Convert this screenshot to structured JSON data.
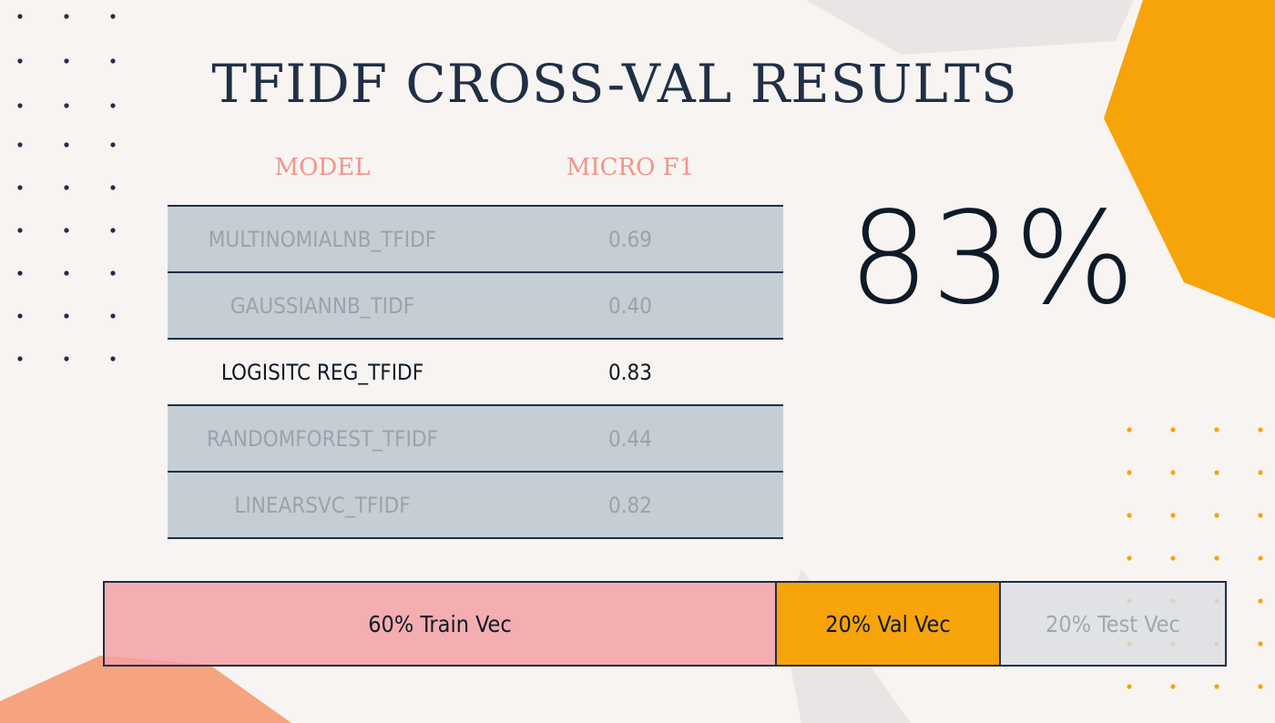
{
  "title": "TFIDF CROSS-VAL RESULTS",
  "table": {
    "headers": {
      "model": "MODEL",
      "metric": "MICRO F1"
    },
    "rows": [
      {
        "model": "MULTINOMIALNB_TFIDF",
        "f1": "0.69",
        "highlighted": false
      },
      {
        "model": "GAUSSIANNB_TIDF",
        "f1": "0.40",
        "highlighted": false
      },
      {
        "model": "LOGISITC REG_TFIDF",
        "f1": "0.83",
        "highlighted": true
      },
      {
        "model": "RANDOMFOREST_TFIDF",
        "f1": "0.44",
        "highlighted": false
      },
      {
        "model": "LINEARSVC_TFIDF",
        "f1": "0.82",
        "highlighted": false
      }
    ]
  },
  "big_score": "83%",
  "split_bar": {
    "train": {
      "label": "60% Train Vec",
      "fraction": 0.6
    },
    "val": {
      "label": "20% Val Vec",
      "fraction": 0.2
    },
    "test": {
      "label": "20% Test Vec",
      "fraction": 0.2
    }
  },
  "colors": {
    "title": "#1f2f46",
    "header": "#f2948a",
    "orange_accent": "#f7a30a",
    "pink_accent": "#f3a0a5",
    "row_muted": "#c5ced5",
    "background": "#f7f4f1"
  }
}
